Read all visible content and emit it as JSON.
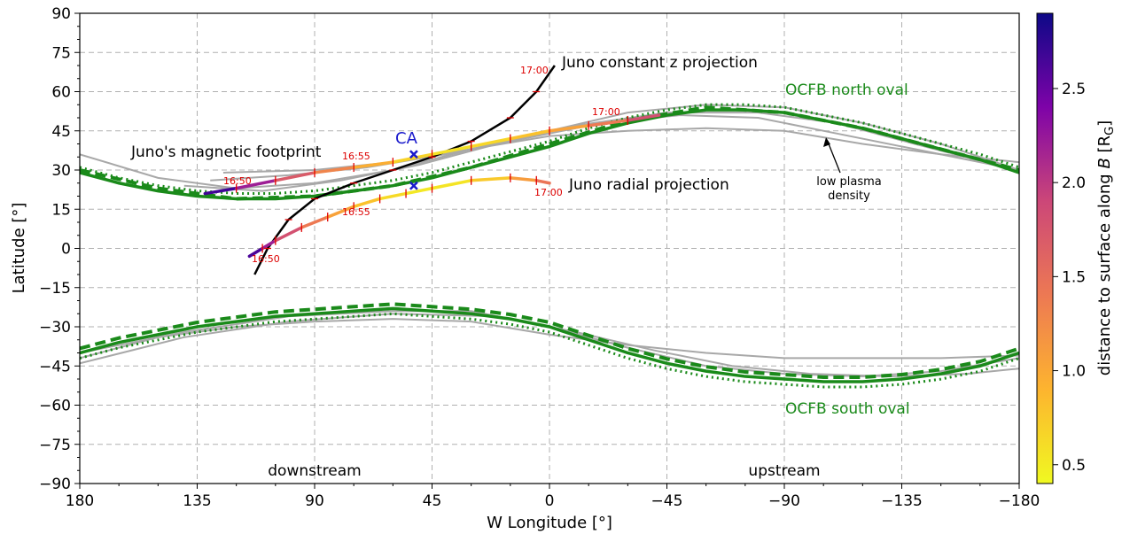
{
  "chart_data": {
    "type": "line",
    "xlabel": "W Longitude [°]",
    "ylabel": "Latitude [°]",
    "xlim": [
      180,
      -180
    ],
    "ylim": [
      -90,
      90
    ],
    "x_ticks": [
      "180",
      "135",
      "90",
      "45",
      "0",
      "−45",
      "−90",
      "−135",
      "−180"
    ],
    "y_ticks": [
      "90",
      "75",
      "60",
      "45",
      "30",
      "15",
      "0",
      "−15",
      "−30",
      "−45",
      "−60",
      "−75",
      "−90"
    ],
    "grid": true,
    "colorbar": {
      "label": "distance to surface along B [R_G]",
      "label_text": "distance to surface along ",
      "label_B": "B",
      "label_unit": "[R",
      "label_sub": "G",
      "label_close": "]",
      "range": [
        0.4,
        2.9
      ],
      "ticks": [
        "0.5",
        "1.0",
        "1.5",
        "2.0",
        "2.5"
      ],
      "colormap": "plasma_r"
    },
    "annotations": {
      "z_proj": "Juno constant z projection",
      "radial_proj": "Juno radial projection",
      "footprint": "Juno's magnetic footprint",
      "ca": "CA",
      "ocfb_north": "OCFB north oval",
      "ocfb_south": "OCFB south oval",
      "low_plasma_1": "low plasma",
      "low_plasma_2": "density",
      "downstream": "downstream",
      "upstream": "upstream",
      "time_labels": [
        "17:00",
        "16:55",
        "16:50",
        "17:00",
        "16:55",
        "16:50",
        "17:00"
      ]
    },
    "series": [
      {
        "style": "thick-green-solid",
        "x": [
          180,
          165,
          150,
          135,
          120,
          105,
          90,
          75,
          60,
          45,
          30,
          15,
          0,
          -15,
          -30,
          -45,
          -60,
          -75,
          -90,
          -105,
          -120,
          -135,
          -150,
          -165,
          -180
        ],
        "y": [
          29,
          25,
          22,
          20,
          19,
          19,
          20,
          22,
          24,
          27,
          31,
          35,
          39,
          44,
          48,
          51,
          53,
          53,
          52,
          49,
          46,
          42,
          38,
          34,
          29
        ]
      },
      {
        "style": "thick-green-dashed",
        "x": [
          180,
          150,
          120,
          90,
          60,
          30,
          0,
          -30,
          -60,
          -90,
          -120,
          -150,
          -180
        ],
        "y": [
          30,
          23,
          19,
          20,
          24,
          31,
          40,
          49,
          54,
          52,
          46,
          38,
          30
        ]
      },
      {
        "style": "thick-green-solid",
        "x": [
          180,
          165,
          150,
          135,
          120,
          105,
          90,
          75,
          60,
          45,
          30,
          15,
          0,
          -15,
          -30,
          -45,
          -60,
          -75,
          -90,
          -105,
          -120,
          -135,
          -150,
          -165,
          -180
        ],
        "y": [
          -40,
          -36,
          -33,
          -30,
          -28,
          -26,
          -25,
          -24,
          -23,
          -24,
          -25,
          -27,
          -30,
          -35,
          -40,
          -44,
          -47,
          -49,
          -50,
          -51,
          -51,
          -50,
          -48,
          -45,
          -40
        ]
      },
      {
        "style": "black",
        "x": [
          113,
          108,
          100,
          90,
          75,
          60,
          45,
          30,
          15,
          5,
          -2
        ],
        "y": [
          -10,
          0,
          11,
          19,
          25,
          30,
          35,
          41,
          50,
          60,
          70
        ]
      },
      {
        "style": "colored-footprint",
        "x": [
          132,
          120,
          105,
          90,
          75,
          60,
          45,
          30,
          15,
          0,
          -15,
          -30,
          -42
        ],
        "y": [
          21,
          23,
          26,
          29,
          31,
          33,
          36,
          39,
          42,
          45,
          47,
          49,
          51
        ],
        "c": [
          2.85,
          2.5,
          1.9,
          1.5,
          1.1,
          0.8,
          0.55,
          0.6,
          0.7,
          0.9,
          1.2,
          1.6,
          2.0
        ]
      },
      {
        "style": "colored-radial",
        "x": [
          115,
          110,
          105,
          95,
          85,
          75,
          65,
          55,
          45,
          30,
          15,
          5,
          0
        ],
        "y": [
          -3,
          0,
          3,
          8,
          12,
          16,
          19,
          21,
          23,
          26,
          27,
          26,
          25
        ],
        "c": [
          2.85,
          2.4,
          2.0,
          1.6,
          1.2,
          0.9,
          0.7,
          0.55,
          0.5,
          0.6,
          0.9,
          1.3,
          1.6
        ]
      }
    ]
  }
}
